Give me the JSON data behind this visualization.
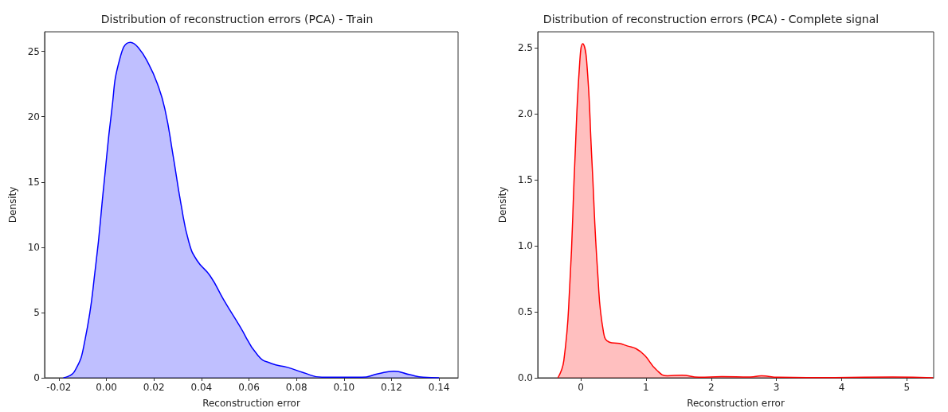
{
  "chart_data": [
    {
      "type": "area",
      "title": "Distribution of reconstruction errors (PCA) - Train",
      "xlabel": "Reconstruction error",
      "ylabel": "Density",
      "xlim": [
        -0.026,
        0.148
      ],
      "xticks": [
        {
          "value": -0.02,
          "label": "-0.02"
        },
        {
          "value": 0,
          "label": "0.00"
        },
        {
          "value": 0.02,
          "label": "0.02"
        },
        {
          "value": 0.04,
          "label": "0.04"
        },
        {
          "value": 0.06,
          "label": "0.06"
        },
        {
          "value": 0.08,
          "label": "0.08"
        },
        {
          "value": 0.1,
          "label": "0.10"
        },
        {
          "value": 0.12,
          "label": "0.12"
        },
        {
          "value": 0.14,
          "label": "0.14"
        }
      ],
      "ylim": [
        0,
        26.5
      ],
      "yticks": [
        0,
        5,
        10,
        15,
        20,
        25
      ],
      "grid": false,
      "series": [
        {
          "color": "#0000ff",
          "x": [
            -0.0181,
            -0.0134,
            -0.009,
            -0.0045,
            -0.0011,
            0.0022,
            0.0056,
            0.0101,
            0.0134,
            0.0179,
            0.0213,
            0.0246,
            0.028,
            0.0314,
            0.0347,
            0.0381,
            0.0437,
            0.0493,
            0.056,
            0.0638,
            0.0694,
            0.0762,
            0.0829,
            0.0907,
            0.1075,
            0.1142,
            0.121,
            0.1277,
            0.1333,
            0.14
          ],
          "values": [
            0,
            0.5,
            2.9,
            8.6,
            14.7,
            20.4,
            24.4,
            25.7,
            25.3,
            24.0,
            22.6,
            20.6,
            17.1,
            13.3,
            10.4,
            9.0,
            7.8,
            6.0,
            4.0,
            1.7,
            1.1,
            0.8,
            0.4,
            0.04,
            0.04,
            0.3,
            0.5,
            0.24,
            0.04,
            0
          ]
        }
      ]
    },
    {
      "type": "area",
      "title": "Distribution of reconstruction errors (PCA) - Complete signal",
      "xlabel": "Reconstruction error",
      "ylabel": "Density",
      "xlim": [
        -0.66,
        5.41
      ],
      "xticks": [
        0,
        1,
        2,
        3,
        4,
        5
      ],
      "ylim": [
        0,
        2.62
      ],
      "yticks": [
        {
          "value": 0,
          "label": "0.0"
        },
        {
          "value": 0.5,
          "label": "0.5"
        },
        {
          "value": 1,
          "label": "1.0"
        },
        {
          "value": 1.5,
          "label": "1.5"
        },
        {
          "value": 2,
          "label": "2.0"
        },
        {
          "value": 2.5,
          "label": "2.5"
        }
      ],
      "grid": false,
      "series": [
        {
          "color": "#ff0000",
          "x": [
            -0.35,
            -0.26,
            -0.17,
            -0.09,
            -0.02,
            0.03,
            0.09,
            0.17,
            0.26,
            0.35,
            0.44,
            0.59,
            0.72,
            0.85,
            0.98,
            1.16,
            1.33,
            1.55,
            1.81,
            2.16,
            2.6,
            2.77,
            3.03,
            3.9,
            4.78,
            5.4
          ],
          "values": [
            0,
            0.13,
            0.69,
            1.65,
            2.36,
            2.53,
            2.4,
            1.65,
            0.79,
            0.34,
            0.27,
            0.26,
            0.24,
            0.22,
            0.17,
            0.06,
            0.015,
            0.02,
            0.004,
            0.009,
            0.006,
            0.015,
            0.004,
            0.002,
            0.006,
            0
          ]
        }
      ]
    }
  ]
}
